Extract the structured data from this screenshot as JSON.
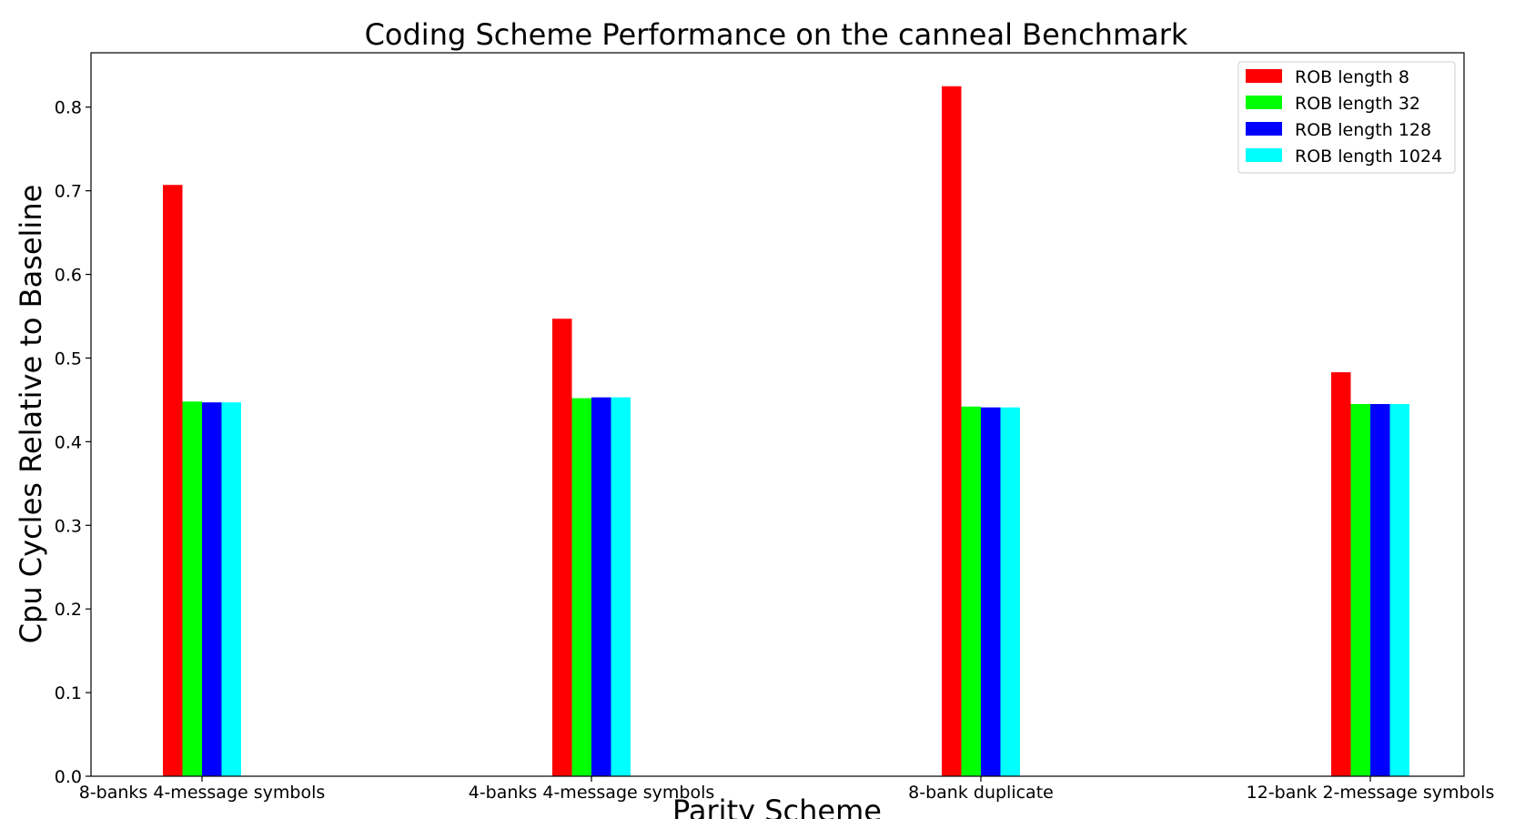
{
  "chart_data": {
    "type": "bar",
    "title": "Coding Scheme Performance on the canneal Benchmark",
    "xlabel": "Parity Scheme",
    "ylabel": "Cpu Cycles Relative to Baseline",
    "categories": [
      "8-banks 4-message symbols",
      "4-banks 4-message symbols",
      "8-bank duplicate",
      "12-bank 2-message symbols"
    ],
    "series": [
      {
        "name": "ROB length 8",
        "color": "#ff0000",
        "values": [
          0.707,
          0.547,
          0.825,
          0.483
        ]
      },
      {
        "name": "ROB length 32",
        "color": "#00ff00",
        "values": [
          0.448,
          0.452,
          0.442,
          0.445
        ]
      },
      {
        "name": "ROB length 128",
        "color": "#0000ff",
        "values": [
          0.447,
          0.453,
          0.441,
          0.445
        ]
      },
      {
        "name": "ROB length 1024",
        "color": "#00ffff",
        "values": [
          0.447,
          0.453,
          0.441,
          0.445
        ]
      }
    ],
    "ylim": [
      0,
      0.865
    ],
    "yticks": [
      "0.0",
      "0.1",
      "0.2",
      "0.3",
      "0.4",
      "0.5",
      "0.6",
      "0.7",
      "0.8"
    ],
    "grid": false,
    "legend_position": "top-right"
  }
}
